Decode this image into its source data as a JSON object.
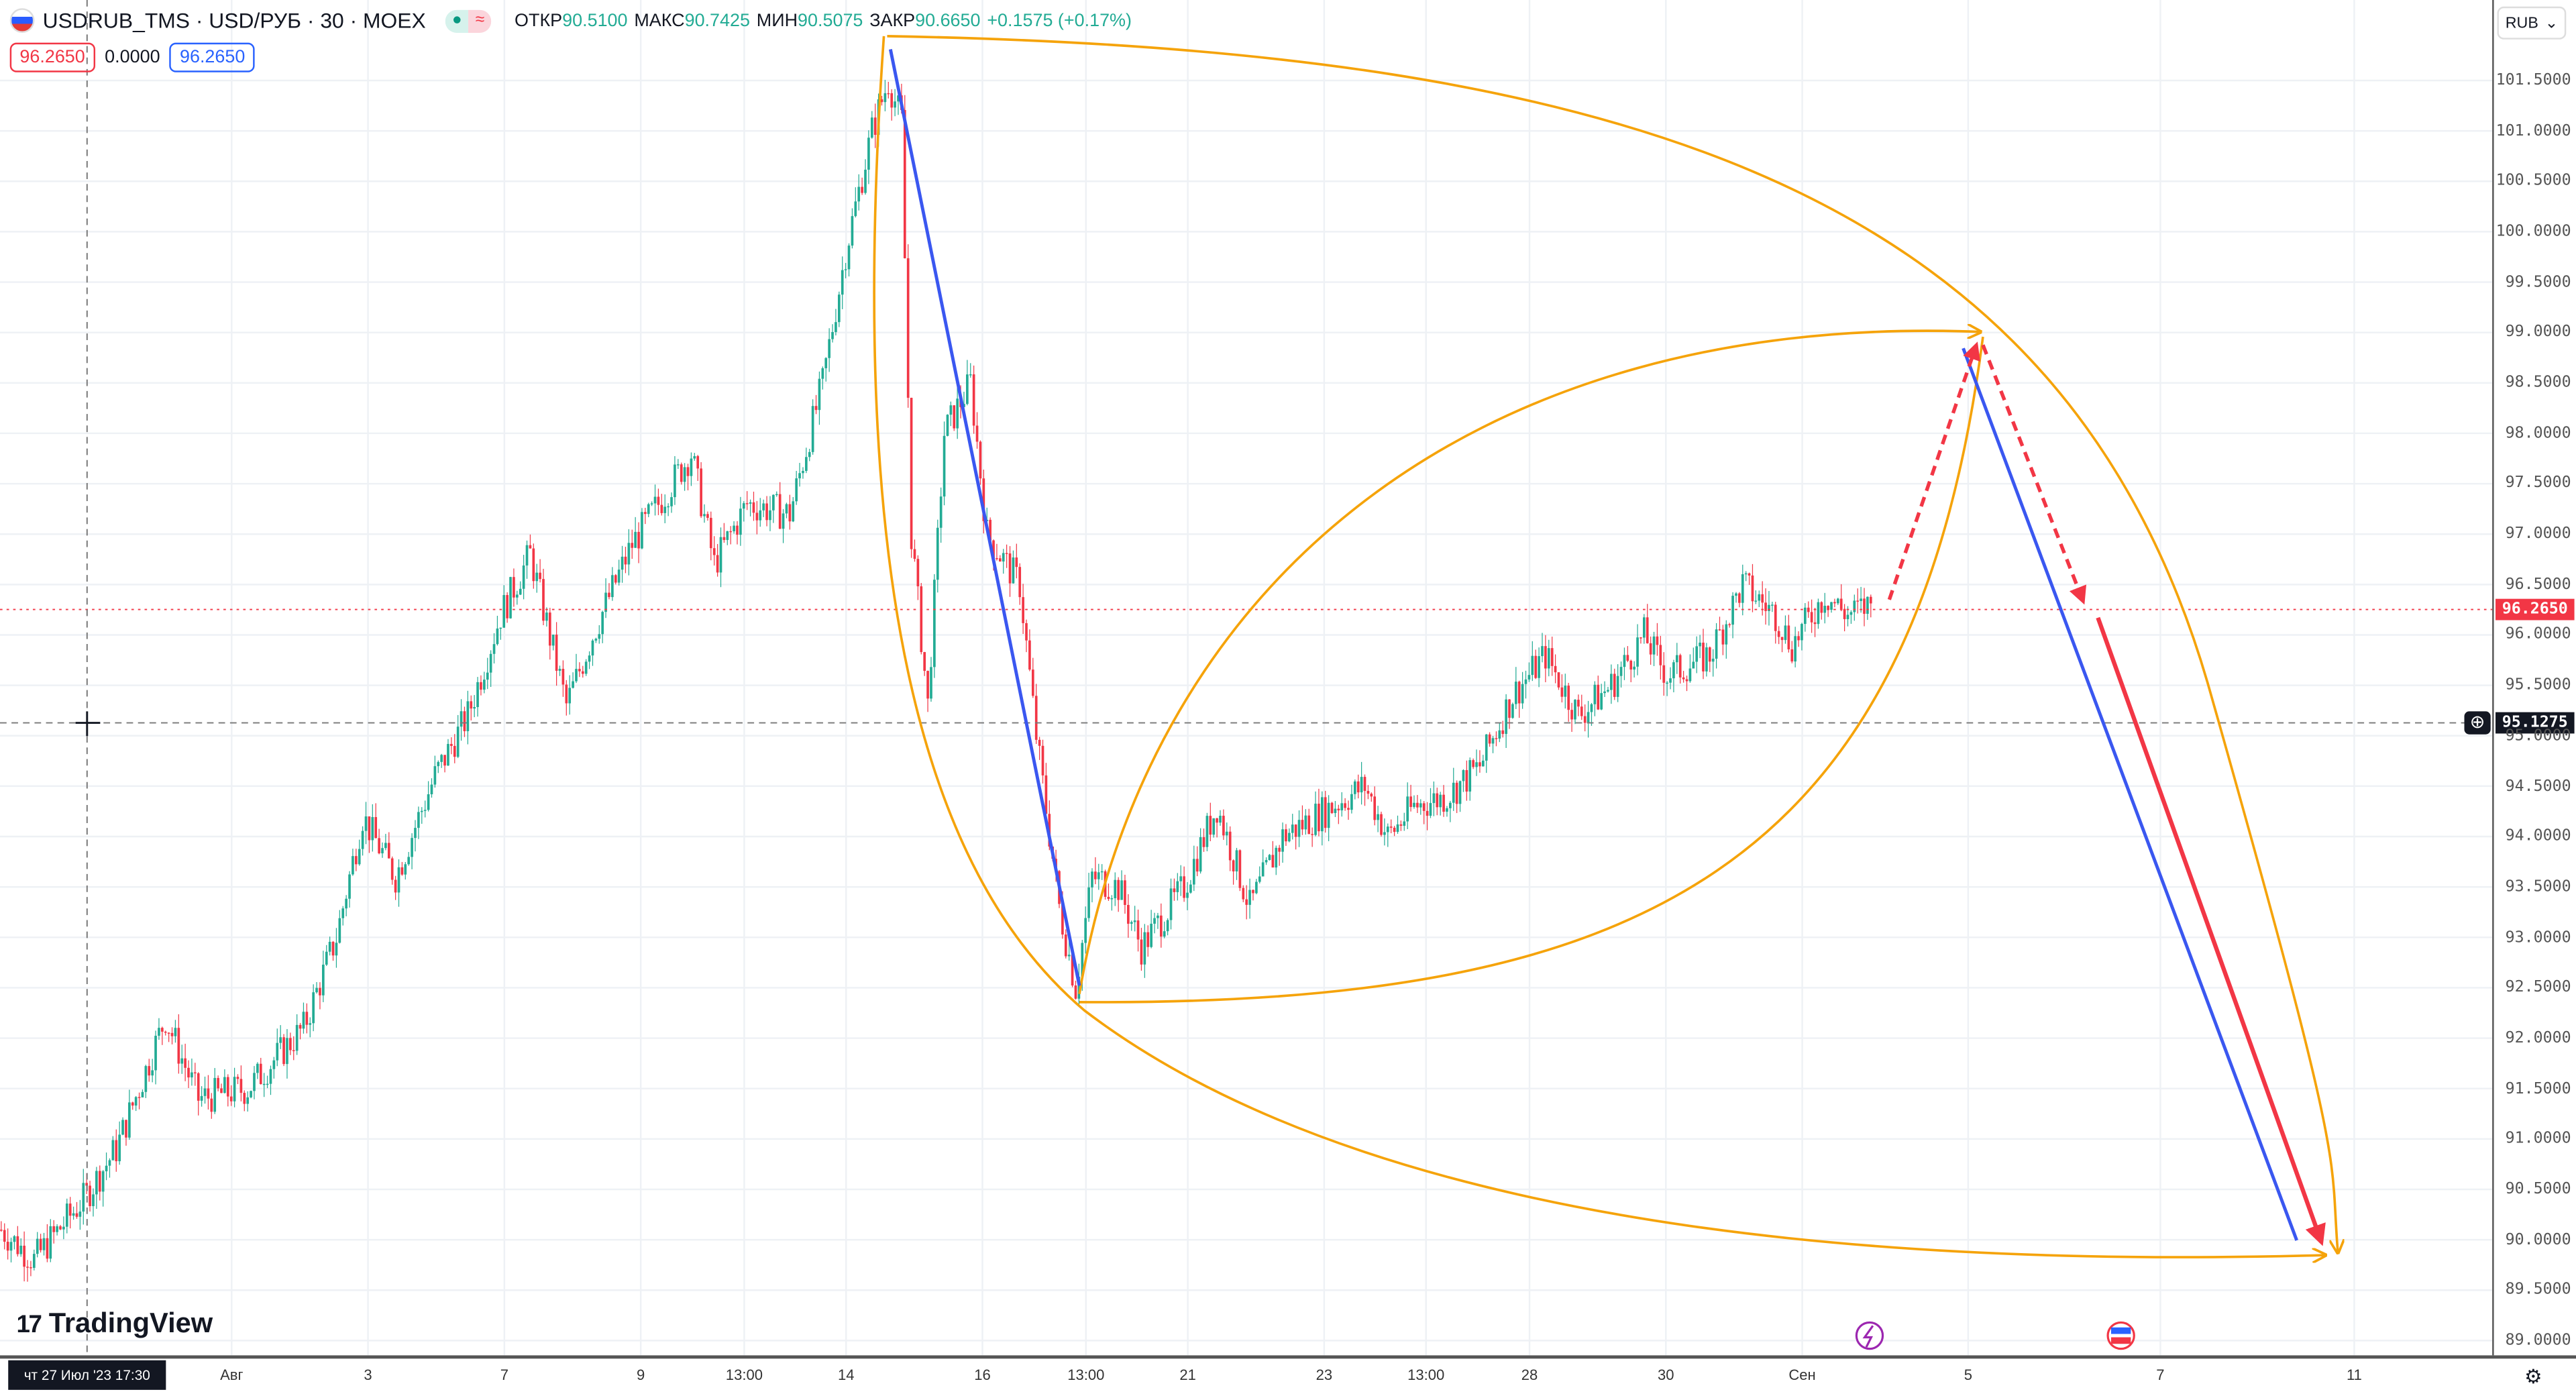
{
  "header": {
    "symbol": "USDRUB_TMS · USD/РУБ · 30 · MOEX",
    "open_label": "ОТКР",
    "open": "90.5100",
    "high_label": "МАКС",
    "high": "90.7425",
    "low_label": "МИН",
    "low": "90.5075",
    "close_label": "ЗАКР",
    "close": "90.6650",
    "change": "+0.1575 (+0.17%)",
    "sell_price": "96.2650",
    "spread": "0.0000",
    "buy_price": "96.2650"
  },
  "currency": "RUB",
  "price_axis": {
    "ticks": [
      "101.5000",
      "101.0000",
      "100.5000",
      "100.0000",
      "99.5000",
      "99.0000",
      "98.5000",
      "98.0000",
      "97.5000",
      "97.0000",
      "96.5000",
      "96.0000",
      "95.5000",
      "95.0000",
      "94.5000",
      "94.0000",
      "93.5000",
      "93.0000",
      "92.5000",
      "92.0000",
      "91.5000",
      "91.0000",
      "90.5000",
      "90.0000",
      "89.5000",
      "89.0000"
    ],
    "last_price": "96.2650",
    "crosshair_price": "95.1275"
  },
  "time_axis": {
    "crosshair_date": "чт 27 Июл '23   17:30",
    "labels": [
      "Авг",
      "3",
      "7",
      "9",
      "13:00",
      "14",
      "16",
      "13:00",
      "21",
      "23",
      "13:00",
      "28",
      "30",
      "Сен",
      "5",
      "7",
      "11"
    ]
  },
  "logo": "TradingView",
  "colors": {
    "up": "#22ab94",
    "down": "#f23645",
    "drawing_orange": "#f5a30a",
    "drawing_blue": "#3a57f0",
    "drawing_red": "#f23645"
  },
  "chart_data": {
    "type": "candlestick",
    "interval": "30",
    "price_path": [
      [
        0,
        90.1
      ],
      [
        10,
        89.8
      ],
      [
        25,
        90.4
      ],
      [
        35,
        90.9
      ],
      [
        50,
        92.2
      ],
      [
        60,
        91.4
      ],
      [
        75,
        91.5
      ],
      [
        92,
        92.1
      ],
      [
        102,
        93.0
      ],
      [
        110,
        94.2
      ],
      [
        120,
        93.6
      ],
      [
        132,
        94.6
      ],
      [
        142,
        95.2
      ],
      [
        152,
        96.2
      ],
      [
        161,
        96.8
      ],
      [
        172,
        95.3
      ],
      [
        180,
        96.0
      ],
      [
        192,
        96.9
      ],
      [
        210,
        97.8
      ],
      [
        217,
        96.7
      ],
      [
        227,
        97.3
      ],
      [
        240,
        97.2
      ],
      [
        250,
        98.5
      ],
      [
        257,
        99.8
      ],
      [
        265,
        101.0
      ],
      [
        270,
        101.5
      ],
      [
        274,
        101.1
      ],
      [
        277,
        97.0
      ],
      [
        282,
        95.3
      ],
      [
        287,
        98.0
      ],
      [
        295,
        98.5
      ],
      [
        300,
        97.0
      ],
      [
        310,
        96.5
      ],
      [
        315,
        95.0
      ],
      [
        322,
        93.3
      ],
      [
        327,
        92.5
      ],
      [
        332,
        93.6
      ],
      [
        340,
        93.5
      ],
      [
        347,
        92.9
      ],
      [
        360,
        93.5
      ],
      [
        370,
        94.3
      ],
      [
        380,
        93.3
      ],
      [
        390,
        94.0
      ],
      [
        405,
        94.3
      ],
      [
        415,
        94.5
      ],
      [
        422,
        94.0
      ],
      [
        430,
        94.3
      ],
      [
        440,
        94.4
      ],
      [
        450,
        94.7
      ],
      [
        460,
        95.4
      ],
      [
        470,
        95.8
      ],
      [
        480,
        95.2
      ],
      [
        490,
        95.5
      ],
      [
        500,
        96.0
      ],
      [
        507,
        95.6
      ],
      [
        520,
        95.8
      ],
      [
        530,
        96.5
      ],
      [
        540,
        96.2
      ],
      [
        545,
        95.9
      ],
      [
        555,
        96.4
      ],
      [
        562,
        96.2
      ],
      [
        569,
        96.3
      ]
    ],
    "ylim": [
      89.0,
      101.5
    ]
  }
}
